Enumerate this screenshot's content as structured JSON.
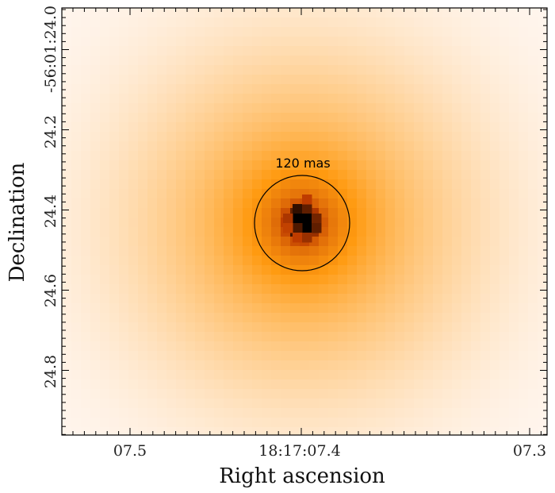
{
  "figure": {
    "xlabel": "Right ascension",
    "ylabel": "Declination",
    "x_ticks": [
      "07.5",
      "18:17:07.4",
      "07.3"
    ],
    "y_ticks": [
      "-56:01:24.0",
      "24.2",
      "24.4",
      "24.6",
      "24.8"
    ],
    "annotation": "120 mas",
    "colormap": {
      "low": "#fff7f2",
      "mid": "#ff9a10",
      "high": "#000000"
    },
    "circle_color": "#000000"
  }
}
